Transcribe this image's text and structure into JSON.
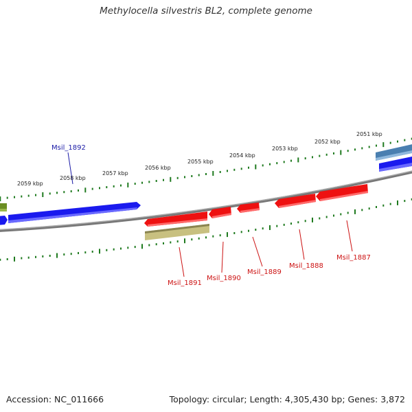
{
  "title": "Methylocella silvestris BL2, complete genome",
  "footer": {
    "accession": "Accession: NC_011666",
    "summary": "Topology: circular; Length: 4,305,430 bp; Genes: 3,872"
  },
  "ticks": [
    {
      "label": "2059 kbp"
    },
    {
      "label": "2058 kbp"
    },
    {
      "label": "2057 kbp"
    },
    {
      "label": "2056 kbp"
    },
    {
      "label": "2055 kbp"
    },
    {
      "label": "2054 kbp"
    },
    {
      "label": "2053 kbp"
    },
    {
      "label": "2052 kbp"
    },
    {
      "label": "2051 kbp"
    }
  ],
  "gene_labels": [
    {
      "name": "Msil_1892",
      "color": "#1a1aa6"
    },
    {
      "name": "Msil_1891",
      "color": "#cc1111"
    },
    {
      "name": "Msil_1890",
      "color": "#cc1111"
    },
    {
      "name": "Msil_1889",
      "color": "#cc1111"
    },
    {
      "name": "Msil_1888",
      "color": "#cc1111"
    },
    {
      "name": "Msil_1887",
      "color": "#cc1111"
    }
  ],
  "colors": {
    "forward_gene": "#1a1aee",
    "reverse_gene": "#ee1111",
    "rna_gene": "#c8c080",
    "olive_gene": "#6b8e23",
    "steel_gene": "#4a7fb0",
    "backbone": "#888888",
    "tick": "#1e7a1e"
  }
}
